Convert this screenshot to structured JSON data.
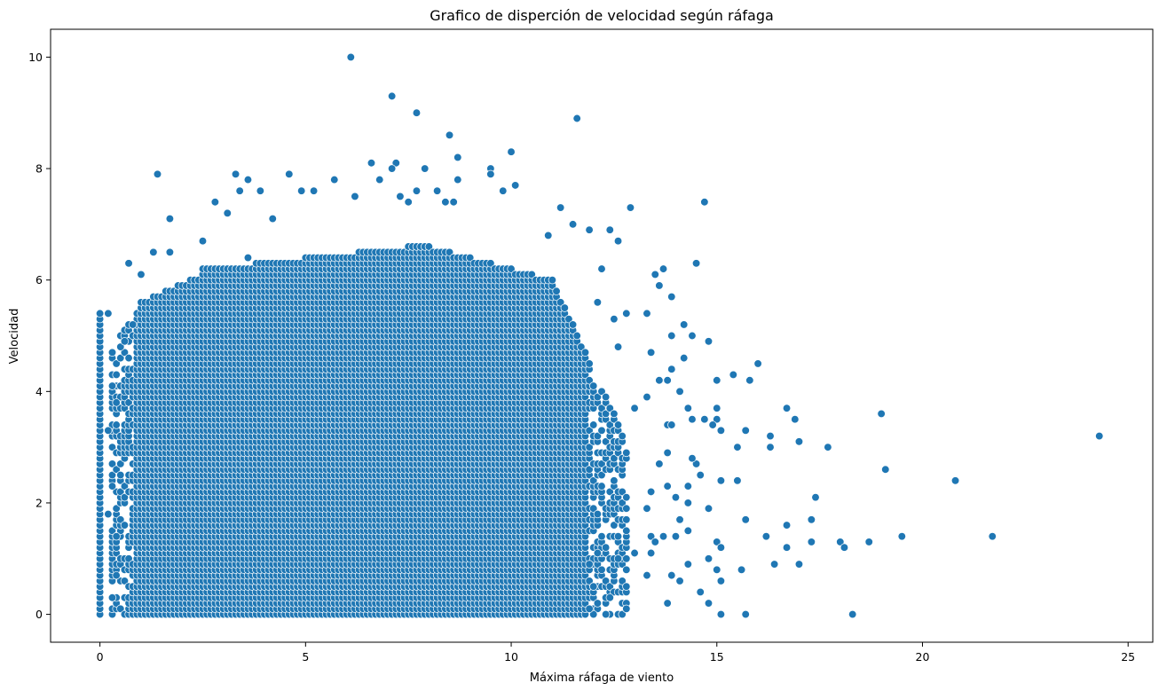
{
  "chart_data": {
    "type": "scatter",
    "title": "Grafico de disperción de velocidad según ráfaga",
    "xlabel": "Máxima ráfaga de viento",
    "ylabel": "Velocidad",
    "xlim": [
      -1.2,
      25.6
    ],
    "ylim": [
      -0.5,
      10.5
    ],
    "xticks": [
      0,
      5,
      10,
      15,
      20,
      25
    ],
    "yticks": [
      0,
      2,
      4,
      6,
      8,
      10
    ],
    "xtick_labels": [
      "0",
      "5",
      "10",
      "15",
      "20",
      "25"
    ],
    "ytick_labels": [
      "0",
      "2",
      "4",
      "6",
      "8",
      "10"
    ],
    "grid": false,
    "marker_color": "#1f77b4",
    "marker_edge_color": "#ffffff",
    "dense_region": {
      "description_x_range": [
        0.0,
        12.8
      ],
      "y_range": [
        0.0,
        5.4
      ],
      "x_step": 0.1,
      "y_step": 0.1
    },
    "points": [
      [
        6.1,
        10.0
      ],
      [
        7.1,
        9.3
      ],
      [
        7.7,
        9.0
      ],
      [
        11.6,
        8.9
      ],
      [
        8.5,
        8.6
      ],
      [
        10.0,
        8.3
      ],
      [
        8.7,
        8.2
      ],
      [
        6.6,
        8.1
      ],
      [
        7.2,
        8.1
      ],
      [
        7.1,
        8.0
      ],
      [
        7.9,
        8.0
      ],
      [
        9.5,
        8.0
      ],
      [
        9.5,
        7.9
      ],
      [
        1.4,
        7.9
      ],
      [
        3.3,
        7.9
      ],
      [
        4.6,
        7.9
      ],
      [
        3.6,
        7.8
      ],
      [
        5.7,
        7.8
      ],
      [
        6.8,
        7.8
      ],
      [
        8.7,
        7.8
      ],
      [
        10.1,
        7.7
      ],
      [
        3.4,
        7.6
      ],
      [
        3.9,
        7.6
      ],
      [
        4.9,
        7.6
      ],
      [
        5.2,
        7.6
      ],
      [
        7.7,
        7.6
      ],
      [
        8.2,
        7.6
      ],
      [
        9.8,
        7.6
      ],
      [
        6.2,
        7.5
      ],
      [
        7.3,
        7.5
      ],
      [
        7.5,
        7.4
      ],
      [
        8.4,
        7.4
      ],
      [
        8.6,
        7.4
      ],
      [
        2.8,
        7.4
      ],
      [
        14.7,
        7.4
      ],
      [
        3.1,
        7.2
      ],
      [
        4.2,
        7.1
      ],
      [
        1.7,
        7.1
      ],
      [
        12.9,
        7.3
      ],
      [
        11.2,
        7.3
      ],
      [
        11.5,
        7.0
      ],
      [
        11.9,
        6.9
      ],
      [
        12.4,
        6.9
      ],
      [
        12.6,
        6.7
      ],
      [
        10.9,
        6.8
      ],
      [
        2.5,
        6.7
      ],
      [
        1.3,
        6.5
      ],
      [
        1.7,
        6.5
      ],
      [
        3.6,
        6.4
      ],
      [
        14.5,
        6.3
      ],
      [
        0.7,
        6.3
      ],
      [
        12.2,
        6.2
      ],
      [
        13.7,
        6.2
      ],
      [
        13.5,
        6.1
      ],
      [
        1.0,
        6.1
      ],
      [
        13.6,
        5.9
      ],
      [
        13.9,
        5.7
      ],
      [
        12.1,
        5.6
      ],
      [
        12.8,
        5.4
      ],
      [
        13.3,
        5.4
      ],
      [
        12.5,
        5.3
      ],
      [
        14.2,
        5.2
      ],
      [
        0.8,
        5.2
      ],
      [
        14.4,
        5.0
      ],
      [
        13.9,
        5.0
      ],
      [
        14.8,
        4.9
      ],
      [
        12.6,
        4.8
      ],
      [
        13.4,
        4.7
      ],
      [
        14.2,
        4.6
      ],
      [
        16.0,
        4.5
      ],
      [
        13.9,
        4.4
      ],
      [
        15.4,
        4.3
      ],
      [
        13.8,
        4.2
      ],
      [
        15.8,
        4.2
      ],
      [
        15.0,
        4.2
      ],
      [
        13.6,
        4.2
      ],
      [
        14.1,
        4.0
      ],
      [
        13.3,
        3.9
      ],
      [
        13.0,
        3.7
      ],
      [
        14.3,
        3.7
      ],
      [
        16.7,
        3.7
      ],
      [
        15.0,
        3.7
      ],
      [
        14.4,
        3.5
      ],
      [
        16.9,
        3.5
      ],
      [
        15.0,
        3.5
      ],
      [
        14.7,
        3.5
      ],
      [
        19.0,
        3.6
      ],
      [
        14.9,
        3.4
      ],
      [
        13.8,
        3.4
      ],
      [
        13.9,
        3.4
      ],
      [
        15.1,
        3.3
      ],
      [
        15.7,
        3.3
      ],
      [
        24.3,
        3.2
      ],
      [
        16.3,
        3.2
      ],
      [
        17.0,
        3.1
      ],
      [
        15.5,
        3.0
      ],
      [
        16.3,
        3.0
      ],
      [
        17.7,
        3.0
      ],
      [
        13.8,
        2.9
      ],
      [
        13.6,
        2.7
      ],
      [
        14.5,
        2.7
      ],
      [
        14.4,
        2.8
      ],
      [
        19.1,
        2.6
      ],
      [
        14.6,
        2.5
      ],
      [
        15.1,
        2.4
      ],
      [
        15.5,
        2.4
      ],
      [
        20.8,
        2.4
      ],
      [
        13.8,
        2.3
      ],
      [
        14.3,
        2.3
      ],
      [
        13.4,
        2.2
      ],
      [
        17.4,
        2.1
      ],
      [
        14.0,
        2.1
      ],
      [
        14.3,
        2.0
      ],
      [
        14.8,
        1.9
      ],
      [
        13.3,
        1.9
      ],
      [
        14.1,
        1.7
      ],
      [
        15.7,
        1.7
      ],
      [
        17.3,
        1.7
      ],
      [
        16.7,
        1.6
      ],
      [
        14.3,
        1.5
      ],
      [
        13.4,
        1.4
      ],
      [
        13.7,
        1.4
      ],
      [
        14.0,
        1.4
      ],
      [
        16.2,
        1.4
      ],
      [
        19.5,
        1.4
      ],
      [
        21.7,
        1.4
      ],
      [
        13.5,
        1.3
      ],
      [
        15.0,
        1.3
      ],
      [
        17.3,
        1.3
      ],
      [
        18.0,
        1.3
      ],
      [
        18.7,
        1.3
      ],
      [
        13.4,
        1.1
      ],
      [
        15.1,
        1.2
      ],
      [
        16.7,
        1.2
      ],
      [
        18.1,
        1.2
      ],
      [
        14.8,
        1.0
      ],
      [
        14.3,
        0.9
      ],
      [
        16.4,
        0.9
      ],
      [
        17.0,
        0.9
      ],
      [
        15.0,
        0.8
      ],
      [
        13.3,
        0.7
      ],
      [
        13.9,
        0.7
      ],
      [
        15.6,
        0.8
      ],
      [
        14.1,
        0.6
      ],
      [
        15.1,
        0.6
      ],
      [
        14.6,
        0.4
      ],
      [
        12.0,
        0.5
      ],
      [
        11.9,
        0.9
      ],
      [
        12.1,
        1.1
      ],
      [
        12.6,
        1.0
      ],
      [
        13.0,
        1.1
      ],
      [
        12.4,
        0.3
      ],
      [
        12.8,
        0.1
      ],
      [
        12.3,
        0.0
      ],
      [
        12.0,
        0.0
      ],
      [
        11.9,
        0.1
      ],
      [
        14.8,
        0.2
      ],
      [
        13.8,
        0.2
      ],
      [
        15.1,
        0.0
      ],
      [
        15.7,
        0.0
      ],
      [
        18.3,
        0.0
      ],
      [
        0.2,
        1.8
      ],
      [
        0.4,
        1.4
      ],
      [
        0.3,
        4.1
      ],
      [
        0.4,
        3.8
      ],
      [
        0.5,
        4.8
      ],
      [
        0.6,
        4.9
      ],
      [
        0.2,
        5.4
      ],
      [
        0.3,
        0.3
      ],
      [
        0.4,
        0.7
      ],
      [
        0.2,
        3.3
      ],
      [
        0.3,
        2.3
      ]
    ]
  }
}
